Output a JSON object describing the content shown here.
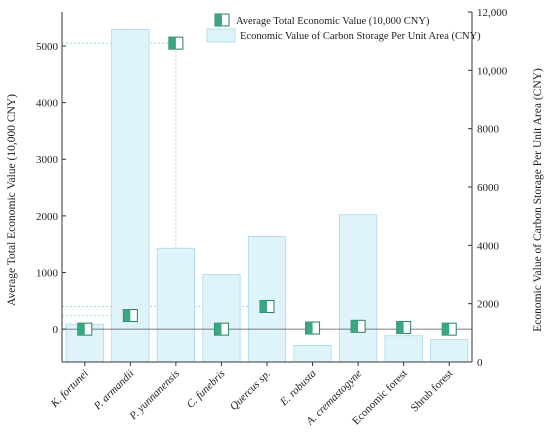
{
  "chart_data": {
    "type": "bar",
    "categories": [
      "K. fortunei",
      "P. armandii",
      "P. yunnanensis",
      "C. funebris",
      "Quercus sp.",
      "E. robusta",
      "A. cremastogyne",
      "Economic forest",
      "Shrub forest"
    ],
    "series": [
      {
        "name": "Average Total Economic Value (10,000 CNY)",
        "axis": "left",
        "type": "scatter",
        "values": [
          0,
          240,
          5050,
          0,
          400,
          20,
          50,
          30,
          0
        ]
      },
      {
        "name": "Economic Value of Carbon Storage Per Unit Area (CNY)",
        "axis": "right",
        "type": "bar",
        "values": [
          1300,
          11400,
          3900,
          3000,
          4300,
          570,
          5050,
          900,
          770
        ]
      }
    ],
    "xlabel": "",
    "ylabel_left": "Average Total Economic Value (10,000 CNY)",
    "ylabel_right": "Economic Value of Carbon Storage Per Unit Area (CNY)",
    "ylim_left": [
      -580,
      5600
    ],
    "ylim_right": [
      0,
      12000
    ],
    "yticks_left": [
      "0",
      "1000",
      "2000",
      "3000",
      "4000",
      "5000"
    ],
    "yticks_right": [
      "0",
      "2000",
      "4000",
      "6000",
      "8000",
      "10,000",
      "12,000"
    ],
    "legend_position": "top-right",
    "colors": {
      "bar_fill": "#dff3fb",
      "bar_stroke": "#a9d8ec",
      "marker_fill": "#3aa782",
      "marker_stroke": "#2a7f62",
      "guide_line": "#7fd3c6",
      "zero_line": "#555555"
    }
  }
}
